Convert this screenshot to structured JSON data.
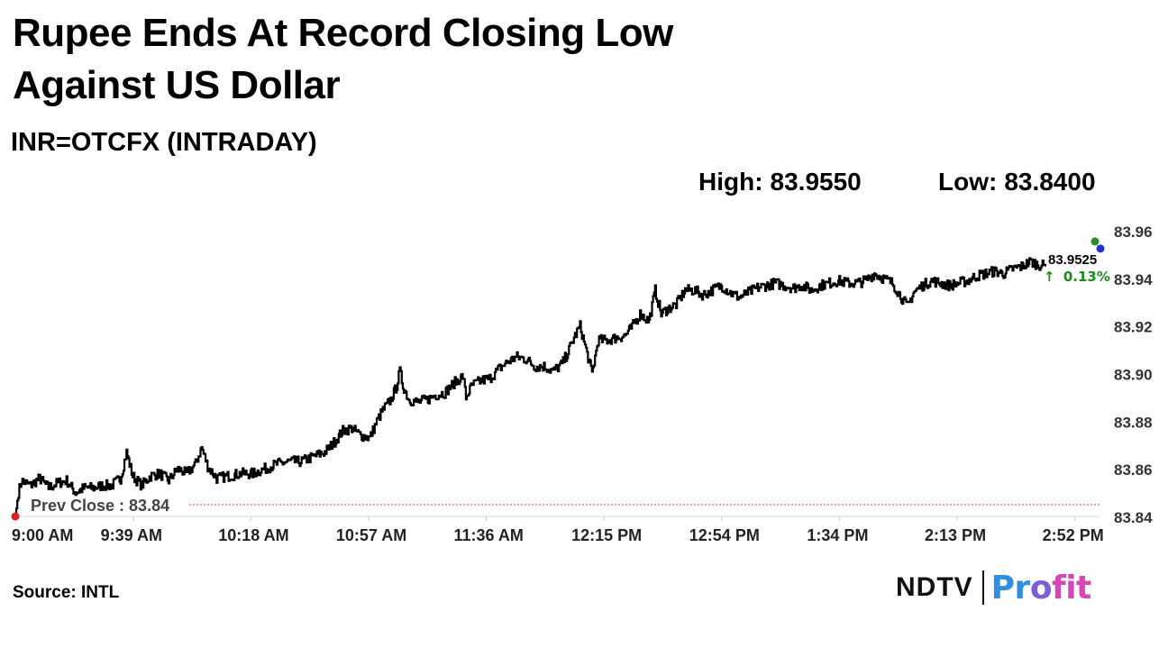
{
  "header": {
    "title": "Rupee Ends At Record Closing Low Against US Dollar",
    "subtitle": "INR=OTCFX (INTRADAY)",
    "high_label": "High:",
    "high_value": "83.9550",
    "low_label": "Low:",
    "low_value": "83.8400"
  },
  "chart_data": {
    "type": "line",
    "series_name": "INR=OTCFX",
    "x_ticks": [
      "9:00 AM",
      "9:39 AM",
      "10:18 AM",
      "10:57 AM",
      "11:36 AM",
      "12:15 PM",
      "12:54 PM",
      "1:34 PM",
      "2:13 PM",
      "2:52 PM"
    ],
    "y_ticks": [
      "83.84",
      "83.86",
      "83.88",
      "83.90",
      "83.92",
      "83.94",
      "83.96"
    ],
    "ylim": [
      83.84,
      83.96
    ],
    "xlim_minutes": [
      0,
      361
    ],
    "prev_close": 83.84,
    "prev_close_label": "Prev Close : 83.84",
    "last_value_label": "83.9525",
    "last_change_label": "0.13%",
    "change_arrow": "↑",
    "anchor_points": [
      [
        0,
        83.84
      ],
      [
        1,
        83.85
      ],
      [
        2,
        83.855
      ],
      [
        5,
        83.853
      ],
      [
        8,
        83.856
      ],
      [
        11,
        83.852
      ],
      [
        14,
        83.854
      ],
      [
        17,
        83.855
      ],
      [
        20,
        83.85
      ],
      [
        23,
        83.852
      ],
      [
        26,
        83.852
      ],
      [
        29,
        83.853
      ],
      [
        32,
        83.853
      ],
      [
        35,
        83.856
      ],
      [
        37,
        83.867
      ],
      [
        39,
        83.857
      ],
      [
        42,
        83.853
      ],
      [
        45,
        83.857
      ],
      [
        48,
        83.858
      ],
      [
        51,
        83.855
      ],
      [
        54,
        83.86
      ],
      [
        57,
        83.858
      ],
      [
        60,
        83.862
      ],
      [
        62,
        83.869
      ],
      [
        64,
        83.861
      ],
      [
        67,
        83.856
      ],
      [
        71,
        83.857
      ],
      [
        75,
        83.858
      ],
      [
        79,
        83.858
      ],
      [
        83,
        83.86
      ],
      [
        87,
        83.862
      ],
      [
        91,
        83.863
      ],
      [
        95,
        83.863
      ],
      [
        99,
        83.865
      ],
      [
        103,
        83.867
      ],
      [
        106,
        83.871
      ],
      [
        109,
        83.876
      ],
      [
        112,
        83.877
      ],
      [
        115,
        83.874
      ],
      [
        118,
        83.873
      ],
      [
        120,
        83.879
      ],
      [
        122,
        83.884
      ],
      [
        125,
        83.889
      ],
      [
        127,
        83.895
      ],
      [
        128,
        83.901
      ],
      [
        129,
        83.895
      ],
      [
        131,
        83.889
      ],
      [
        134,
        83.888
      ],
      [
        137,
        83.889
      ],
      [
        140,
        83.891
      ],
      [
        143,
        83.892
      ],
      [
        146,
        83.896
      ],
      [
        149,
        83.899
      ],
      [
        150,
        83.89
      ],
      [
        152,
        83.895
      ],
      [
        155,
        83.897
      ],
      [
        158,
        83.898
      ],
      [
        161,
        83.902
      ],
      [
        164,
        83.905
      ],
      [
        167,
        83.907
      ],
      [
        170,
        83.906
      ],
      [
        173,
        83.903
      ],
      [
        176,
        83.903
      ],
      [
        179,
        83.901
      ],
      [
        182,
        83.904
      ],
      [
        184,
        83.909
      ],
      [
        186,
        83.915
      ],
      [
        188,
        83.92
      ],
      [
        190,
        83.91
      ],
      [
        192,
        83.9
      ],
      [
        194,
        83.914
      ],
      [
        197,
        83.914
      ],
      [
        200,
        83.915
      ],
      [
        203,
        83.916
      ],
      [
        205,
        83.919
      ],
      [
        208,
        83.925
      ],
      [
        211,
        83.922
      ],
      [
        213,
        83.935
      ],
      [
        215,
        83.925
      ],
      [
        217,
        83.927
      ],
      [
        220,
        83.929
      ],
      [
        223,
        83.935
      ],
      [
        226,
        83.935
      ],
      [
        229,
        83.933
      ],
      [
        232,
        83.935
      ],
      [
        235,
        83.937
      ],
      [
        238,
        83.934
      ],
      [
        241,
        83.932
      ],
      [
        244,
        83.934
      ],
      [
        247,
        83.936
      ],
      [
        250,
        83.937
      ],
      [
        253,
        83.938
      ],
      [
        256,
        83.937
      ],
      [
        259,
        83.936
      ],
      [
        262,
        83.937
      ],
      [
        265,
        83.935
      ],
      [
        268,
        83.937
      ],
      [
        271,
        83.938
      ],
      [
        274,
        83.939
      ],
      [
        277,
        83.938
      ],
      [
        280,
        83.938
      ],
      [
        283,
        83.939
      ],
      [
        286,
        83.942
      ],
      [
        289,
        83.94
      ],
      [
        292,
        83.938
      ],
      [
        295,
        83.932
      ],
      [
        297,
        83.928
      ],
      [
        299,
        83.934
      ],
      [
        302,
        83.937
      ],
      [
        305,
        83.939
      ],
      [
        308,
        83.938
      ],
      [
        311,
        83.937
      ],
      [
        314,
        83.938
      ],
      [
        317,
        83.939
      ],
      [
        320,
        83.941
      ],
      [
        323,
        83.942
      ],
      [
        326,
        83.943
      ],
      [
        329,
        83.942
      ],
      [
        332,
        83.944
      ],
      [
        335,
        83.945
      ],
      [
        338,
        83.947
      ],
      [
        340,
        83.946
      ],
      [
        343,
        83.945
      ]
    ]
  },
  "footer": {
    "source": "Source: INTL",
    "logo_left": "NDTV",
    "logo_right_1": "Pr",
    "logo_right_2": "o",
    "logo_right_3": "fit"
  },
  "colors": {
    "line": "#000000",
    "prev_close_line": "#d04040",
    "start_dot": "#e02020",
    "high_dot": "#2a8a2a",
    "last_dot": "#1a33cc",
    "change_up": "#1a8a1a"
  }
}
